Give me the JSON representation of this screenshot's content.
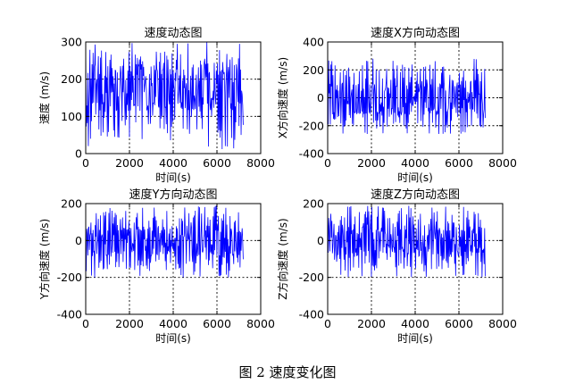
{
  "figure_caption": "图 2  速度变化图",
  "colors": {
    "line": "#0000ff",
    "axis": "#000000",
    "grid": "#000000",
    "background": "#ffffff"
  },
  "chart_data": [
    {
      "type": "line",
      "title": "速度动态图",
      "xlabel": "时间(s)",
      "ylabel": "速度 (m/s)",
      "xlim": [
        0,
        8000
      ],
      "ylim": [
        0,
        300
      ],
      "xticks": [
        0,
        2000,
        4000,
        6000,
        8000
      ],
      "yticks": [
        0,
        100,
        200,
        300
      ],
      "grid": true,
      "series": [
        {
          "x_start": 0,
          "x_end": 7200,
          "n_points": 300,
          "min": 10,
          "max": 300,
          "mean": 180,
          "values": []
        }
      ]
    },
    {
      "type": "line",
      "title": "速度X方向动态图",
      "xlabel": "时间(s)",
      "ylabel": "X方向速度 (m/s)",
      "xlim": [
        0,
        8000
      ],
      "ylim": [
        -400,
        400
      ],
      "xticks": [
        0,
        2000,
        4000,
        6000,
        8000
      ],
      "yticks": [
        -400,
        -200,
        0,
        200,
        400
      ],
      "grid": true,
      "series": [
        {
          "x_start": 0,
          "x_end": 7200,
          "n_points": 300,
          "min": -260,
          "max": 280,
          "mean": 0,
          "values": []
        }
      ]
    },
    {
      "type": "line",
      "title": "速度Y方向动态图",
      "xlabel": "时间(s)",
      "ylabel": "Y方向速度 (m/s)",
      "xlim": [
        0,
        8000
      ],
      "ylim": [
        -400,
        200
      ],
      "xticks": [
        0,
        2000,
        4000,
        6000,
        8000
      ],
      "yticks": [
        -400,
        -200,
        0,
        200
      ],
      "grid": true,
      "series": [
        {
          "x_start": 0,
          "x_end": 7200,
          "n_points": 300,
          "min": -200,
          "max": 190,
          "mean": 0,
          "values": []
        }
      ]
    },
    {
      "type": "line",
      "title": "速度Z方向动态图",
      "xlabel": "时间(s)",
      "ylabel": "Z方向速度 (m/s)",
      "xlim": [
        0,
        8000
      ],
      "ylim": [
        -400,
        200
      ],
      "xticks": [
        0,
        2000,
        4000,
        6000,
        8000
      ],
      "yticks": [
        -400,
        -200,
        0,
        200
      ],
      "grid": true,
      "series": [
        {
          "x_start": 0,
          "x_end": 7200,
          "n_points": 300,
          "min": -200,
          "max": 190,
          "mean": 0,
          "values": []
        }
      ]
    }
  ]
}
